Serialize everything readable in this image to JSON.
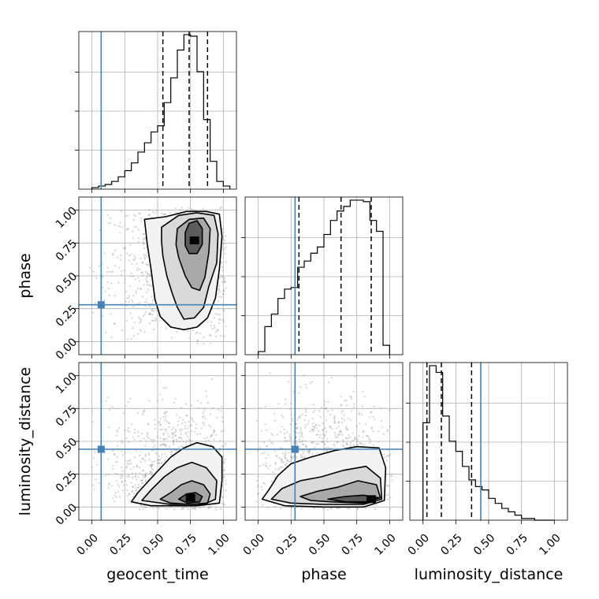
{
  "chart_data": {
    "type": "corner",
    "parameters": [
      "geocent_time",
      "phase",
      "luminosity_distance"
    ],
    "axis_labels": {
      "bottom": [
        "geocent_time",
        "phase",
        "luminosity_distance"
      ],
      "left": [
        "phase",
        "luminosity_distance"
      ]
    },
    "tick_labels": [
      "0.00",
      "0.25",
      "0.50",
      "0.75",
      "1.00"
    ],
    "axis_range": [
      -0.1,
      1.1
    ],
    "truths": {
      "geocent_time": 0.07,
      "phase": 0.28,
      "luminosity_distance": 0.44
    },
    "truth_color": "#4682b4",
    "histograms": [
      {
        "parameter": "geocent_time",
        "bin_edges": [
          0.0,
          0.05,
          0.1,
          0.15,
          0.2,
          0.25,
          0.3,
          0.35,
          0.4,
          0.45,
          0.5,
          0.55,
          0.6,
          0.65,
          0.7,
          0.75,
          0.8,
          0.85,
          0.9,
          0.95,
          1.0,
          1.05
        ],
        "counts": [
          0.01,
          0.02,
          0.03,
          0.05,
          0.08,
          0.12,
          0.17,
          0.24,
          0.3,
          0.37,
          0.41,
          0.56,
          0.72,
          0.9,
          1.0,
          0.99,
          0.76,
          0.45,
          0.18,
          0.05,
          0.02
        ],
        "quantiles": [
          0.54,
          0.74,
          0.88
        ]
      },
      {
        "parameter": "phase",
        "bin_edges": [
          0.0,
          0.05,
          0.1,
          0.15,
          0.2,
          0.25,
          0.3,
          0.35,
          0.4,
          0.45,
          0.5,
          0.55,
          0.6,
          0.65,
          0.7,
          0.75,
          0.8,
          0.85,
          0.9,
          0.95,
          1.0
        ],
        "counts": [
          0.02,
          0.18,
          0.26,
          0.36,
          0.42,
          0.43,
          0.56,
          0.6,
          0.65,
          0.69,
          0.77,
          0.86,
          0.92,
          0.95,
          0.99,
          0.99,
          0.98,
          0.86,
          0.79,
          0.06
        ],
        "quantiles": [
          0.31,
          0.63,
          0.86
        ]
      },
      {
        "parameter": "luminosity_distance",
        "bin_edges": [
          0.0,
          0.05,
          0.1,
          0.15,
          0.2,
          0.25,
          0.3,
          0.35,
          0.4,
          0.45,
          0.5,
          0.55,
          0.6,
          0.65,
          0.7,
          0.75,
          0.8,
          0.85,
          0.9,
          0.95,
          1.0
        ],
        "counts": [
          0.58,
          0.92,
          0.88,
          0.62,
          0.47,
          0.41,
          0.32,
          0.24,
          0.2,
          0.18,
          0.13,
          0.1,
          0.07,
          0.05,
          0.03,
          0.01,
          0.01,
          0.0,
          0.0,
          0.0
        ],
        "quantiles": [
          0.03,
          0.14,
          0.37
        ]
      }
    ],
    "joint": [
      {
        "x": "geocent_time",
        "y": "phase",
        "contours": [
          [
            [
              0.4,
              0.93
            ],
            [
              0.56,
              0.95
            ],
            [
              0.72,
              0.99
            ],
            [
              0.87,
              0.99
            ],
            [
              0.97,
              0.97
            ],
            [
              0.99,
              0.8
            ],
            [
              0.97,
              0.55
            ],
            [
              0.94,
              0.33
            ],
            [
              0.88,
              0.18
            ],
            [
              0.8,
              0.11
            ],
            [
              0.7,
              0.09
            ],
            [
              0.6,
              0.11
            ],
            [
              0.52,
              0.19
            ],
            [
              0.48,
              0.32
            ],
            [
              0.45,
              0.55
            ],
            [
              0.42,
              0.75
            ]
          ],
          [
            [
              0.53,
              0.87
            ],
            [
              0.66,
              0.96
            ],
            [
              0.8,
              0.98
            ],
            [
              0.93,
              0.96
            ],
            [
              0.96,
              0.82
            ],
            [
              0.95,
              0.6
            ],
            [
              0.89,
              0.42
            ],
            [
              0.85,
              0.26
            ],
            [
              0.78,
              0.18
            ],
            [
              0.7,
              0.17
            ],
            [
              0.65,
              0.26
            ],
            [
              0.61,
              0.37
            ],
            [
              0.57,
              0.5
            ],
            [
              0.54,
              0.65
            ],
            [
              0.53,
              0.76
            ]
          ],
          [
            [
              0.65,
              0.86
            ],
            [
              0.74,
              0.93
            ],
            [
              0.85,
              0.94
            ],
            [
              0.9,
              0.86
            ],
            [
              0.89,
              0.68
            ],
            [
              0.86,
              0.49
            ],
            [
              0.82,
              0.39
            ],
            [
              0.76,
              0.41
            ],
            [
              0.71,
              0.5
            ],
            [
              0.66,
              0.64
            ],
            [
              0.64,
              0.74
            ]
          ],
          [
            [
              0.74,
              0.9
            ],
            [
              0.8,
              0.92
            ],
            [
              0.84,
              0.86
            ],
            [
              0.84,
              0.74
            ],
            [
              0.8,
              0.67
            ],
            [
              0.74,
              0.67
            ],
            [
              0.71,
              0.73
            ],
            [
              0.71,
              0.83
            ]
          ]
        ],
        "density_peak": [
          0.78,
          0.77
        ]
      },
      {
        "x": "geocent_time",
        "y": "luminosity_distance",
        "contours": [
          [
            [
              0.3,
              0.04
            ],
            [
              0.35,
              0.11
            ],
            [
              0.46,
              0.23
            ],
            [
              0.6,
              0.38
            ],
            [
              0.7,
              0.45
            ],
            [
              0.8,
              0.49
            ],
            [
              0.92,
              0.46
            ],
            [
              0.99,
              0.38
            ],
            [
              0.99,
              0.2
            ],
            [
              0.97,
              0.03
            ],
            [
              0.8,
              0.01
            ],
            [
              0.6,
              0.01
            ],
            [
              0.45,
              0.01
            ]
          ],
          [
            [
              0.38,
              0.05
            ],
            [
              0.45,
              0.13
            ],
            [
              0.55,
              0.23
            ],
            [
              0.65,
              0.3
            ],
            [
              0.76,
              0.34
            ],
            [
              0.87,
              0.3
            ],
            [
              0.95,
              0.2
            ],
            [
              0.94,
              0.06
            ],
            [
              0.85,
              0.02
            ],
            [
              0.6,
              0.02
            ]
          ],
          [
            [
              0.52,
              0.06
            ],
            [
              0.6,
              0.11
            ],
            [
              0.68,
              0.17
            ],
            [
              0.76,
              0.2
            ],
            [
              0.85,
              0.17
            ],
            [
              0.9,
              0.1
            ],
            [
              0.88,
              0.03
            ],
            [
              0.75,
              0.02
            ],
            [
              0.6,
              0.03
            ]
          ],
          [
            [
              0.66,
              0.06
            ],
            [
              0.72,
              0.1
            ],
            [
              0.79,
              0.11
            ],
            [
              0.84,
              0.08
            ],
            [
              0.82,
              0.04
            ],
            [
              0.73,
              0.03
            ]
          ]
        ],
        "density_peak": [
          0.75,
          0.07
        ]
      },
      {
        "x": "phase",
        "y": "luminosity_distance",
        "contours": [
          [
            [
              0.03,
              0.06
            ],
            [
              0.08,
              0.13
            ],
            [
              0.15,
              0.24
            ],
            [
              0.25,
              0.33
            ],
            [
              0.4,
              0.38
            ],
            [
              0.58,
              0.43
            ],
            [
              0.75,
              0.46
            ],
            [
              0.92,
              0.45
            ],
            [
              0.97,
              0.3
            ],
            [
              0.96,
              0.05
            ],
            [
              0.8,
              0.0
            ],
            [
              0.5,
              0.0
            ],
            [
              0.2,
              0.01
            ]
          ],
          [
            [
              0.1,
              0.06
            ],
            [
              0.18,
              0.14
            ],
            [
              0.32,
              0.2
            ],
            [
              0.48,
              0.23
            ],
            [
              0.65,
              0.28
            ],
            [
              0.82,
              0.31
            ],
            [
              0.93,
              0.22
            ],
            [
              0.94,
              0.06
            ],
            [
              0.8,
              0.02
            ],
            [
              0.5,
              0.02
            ],
            [
              0.25,
              0.03
            ]
          ],
          [
            [
              0.32,
              0.08
            ],
            [
              0.45,
              0.12
            ],
            [
              0.6,
              0.15
            ],
            [
              0.76,
              0.2
            ],
            [
              0.9,
              0.17
            ],
            [
              0.93,
              0.07
            ],
            [
              0.8,
              0.03
            ],
            [
              0.55,
              0.04
            ],
            [
              0.4,
              0.05
            ]
          ],
          [
            [
              0.53,
              0.06
            ],
            [
              0.66,
              0.08
            ],
            [
              0.8,
              0.09
            ],
            [
              0.92,
              0.07
            ],
            [
              0.82,
              0.04
            ],
            [
              0.66,
              0.04
            ]
          ]
        ],
        "density_peak": [
          0.86,
          0.06
        ]
      }
    ]
  }
}
